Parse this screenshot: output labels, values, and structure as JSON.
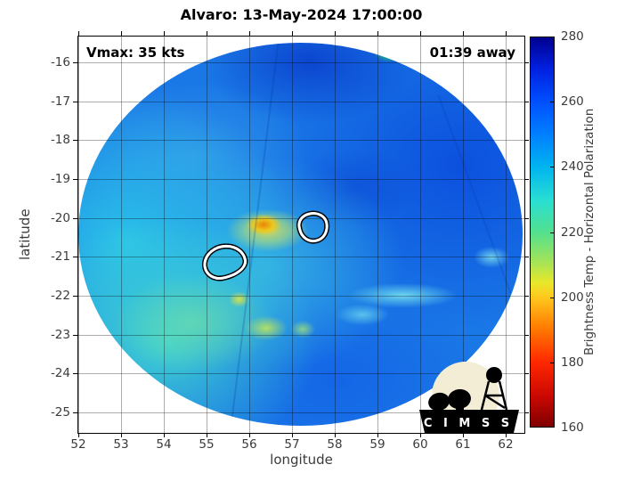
{
  "title": "Alvaro: 13-May-2024 17:00:00",
  "overlays": {
    "vmax": "Vmax: 35 kts",
    "eta": "01:39 away"
  },
  "axes": {
    "xlabel": "longitude",
    "ylabel": "latitude",
    "x_ticks": [
      "52",
      "53",
      "54",
      "55",
      "56",
      "57",
      "58",
      "59",
      "60",
      "61",
      "62"
    ],
    "y_ticks": [
      "-16",
      "-17",
      "-18",
      "-19",
      "-20",
      "-21",
      "-22",
      "-23",
      "-24",
      "-25"
    ]
  },
  "colorbar": {
    "label": "Brightness Temp - Horizontal Polarization",
    "tick_values": [
      280,
      260,
      240,
      220,
      200,
      180,
      160
    ],
    "inner_tick_values": [
      260,
      240,
      220,
      200,
      180
    ],
    "max": 280,
    "min": 160
  },
  "logo": {
    "text": "C I M S S"
  },
  "colors": {
    "grid": "rgba(0,0,0,0.32)",
    "tick_text": "#3b3b3b",
    "axis": "#000000",
    "swath_blue": "#1a78e6",
    "swath_cyan": "#2dc9e9",
    "hotspot_orange": "#ef8000",
    "logo_cream": "#f4edd5"
  },
  "chart_data": {
    "type": "heatmap",
    "title": "Alvaro: 13-May-2024 17:00:00",
    "xlabel": "longitude",
    "ylabel": "latitude",
    "xlim": [
      52,
      62.5
    ],
    "ylim": [
      -25.5,
      -15.3
    ],
    "x_ticks": [
      52,
      53,
      54,
      55,
      56,
      57,
      58,
      59,
      60,
      61,
      62
    ],
    "y_ticks": [
      -16,
      -17,
      -18,
      -19,
      -20,
      -21,
      -22,
      -23,
      -24,
      -25
    ],
    "grid": true,
    "colorbar": {
      "label": "Brightness Temp - Horizontal Polarization",
      "range": [
        160,
        280
      ],
      "ticks": [
        160,
        180,
        200,
        220,
        240,
        260,
        280
      ],
      "colormap": "jet-reversed (280=dark blue, 160=dark red)"
    },
    "storm": {
      "name": "Alvaro",
      "datetime": "13-May-2024 17:00:00",
      "vmax_kts": 35,
      "time_offset_label": "01:39 away"
    },
    "swath": {
      "shape": "circular microwave-imager swath",
      "center_lon": 57.2,
      "center_lat": -20.4,
      "radius_deg": 5.2
    },
    "features": [
      {
        "kind": "warm-spot-orange-yellow",
        "lon": 56.2,
        "lat": -20.2,
        "approx_value_K": 200
      },
      {
        "kind": "white-contour",
        "lon": 57.5,
        "lat": -20.3
      },
      {
        "kind": "white-contour",
        "lon": 55.4,
        "lat": -21.2
      },
      {
        "kind": "warm-patch-yellow-green",
        "lon": 56.4,
        "lat": -22.7,
        "approx_value_K": 215
      },
      {
        "kind": "small-warm-dot",
        "lon": 55.8,
        "lat": -22.1,
        "approx_value_K": 212
      },
      {
        "kind": "green-spot-at-swath-edge",
        "lon": 59.3,
        "lat": -16.1,
        "approx_value_K": 222
      },
      {
        "kind": "cool-region-blue",
        "area": "north and east half",
        "approx_value_K": 258
      },
      {
        "kind": "warm-region-cyan-turquoise",
        "area": "west and southwest",
        "approx_value_K": 237
      },
      {
        "kind": "cyan-streaks",
        "lon": 59.5,
        "lat": -22.6,
        "approx_value_K": 242
      }
    ]
  }
}
